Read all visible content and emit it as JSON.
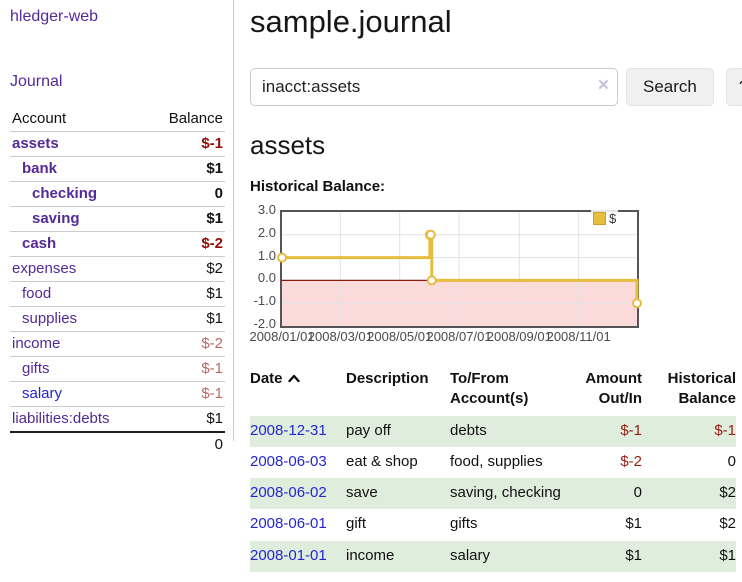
{
  "sidebar": {
    "brand": "hledger-web",
    "journal_link": "Journal",
    "accounts_table": {
      "headers": {
        "account": "Account",
        "balance": "Balance"
      },
      "rows": [
        {
          "account": "assets",
          "depth": 1,
          "balance": "$-1",
          "active": true,
          "negative": true
        },
        {
          "account": "bank",
          "depth": 2,
          "balance": "$1",
          "active": true,
          "negative": false
        },
        {
          "account": "checking",
          "depth": 3,
          "balance": "0",
          "active": true,
          "negative": false
        },
        {
          "account": "saving",
          "depth": 3,
          "balance": "$1",
          "active": true,
          "negative": false
        },
        {
          "account": "cash",
          "depth": 2,
          "balance": "$-2",
          "active": true,
          "negative": true
        },
        {
          "account": "expenses",
          "depth": 1,
          "balance": "$2",
          "active": false,
          "negative": false
        },
        {
          "account": "food",
          "depth": 2,
          "balance": "$1",
          "active": false,
          "negative": false
        },
        {
          "account": "supplies",
          "depth": 2,
          "balance": "$1",
          "active": false,
          "negative": false
        },
        {
          "account": "income",
          "depth": 1,
          "balance": "$-2",
          "active": false,
          "negative": true
        },
        {
          "account": "gifts",
          "depth": 2,
          "balance": "$-1",
          "active": false,
          "negative": true
        },
        {
          "account": "salary",
          "depth": 2,
          "balance": "$-1",
          "active": false,
          "negative": true,
          "unvisited": true
        },
        {
          "account": "liabilities:debts",
          "depth": 1,
          "balance": "$1",
          "active": false,
          "negative": false
        }
      ],
      "total": "0"
    }
  },
  "header": {
    "title": "sample.journal"
  },
  "search": {
    "value": "inacct:assets",
    "clear_icon": "×",
    "button_label": "Search",
    "help_label": "?"
  },
  "account_page": {
    "title": "assets",
    "chart_label": "Historical Balance:"
  },
  "chart_data": {
    "type": "line",
    "style": "step",
    "title": "Historical Balance:",
    "series": [
      {
        "name": "$",
        "color": "#e7bd3f",
        "points": [
          {
            "date": "2008-01-01",
            "value": 1
          },
          {
            "date": "2008-06-01",
            "value": 2
          },
          {
            "date": "2008-06-02",
            "value": 2
          },
          {
            "date": "2008-06-03",
            "value": 0
          },
          {
            "date": "2008-12-31",
            "value": -1
          }
        ]
      }
    ],
    "x_range": [
      "2008-01-01",
      "2008-12-31"
    ],
    "ylim": [
      -2,
      3
    ],
    "y_ticks": [
      {
        "value": 3,
        "label": "3.0"
      },
      {
        "value": 2,
        "label": "2.0"
      },
      {
        "value": 1,
        "label": "1.0"
      },
      {
        "value": 0,
        "label": "0.0"
      },
      {
        "value": -1,
        "label": "-1.0"
      },
      {
        "value": -2,
        "label": "-2.0"
      }
    ],
    "x_ticks": [
      {
        "date": "2008-01-01",
        "label": "2008/01/01"
      },
      {
        "date": "2008-03-01",
        "label": "2008/03/01"
      },
      {
        "date": "2008-05-01",
        "label": "2008/05/01"
      },
      {
        "date": "2008-07-01",
        "label": "2008/07/01"
      },
      {
        "date": "2008-09-01",
        "label": "2008/09/01"
      },
      {
        "date": "2008-11-01",
        "label": "2008/11/01"
      }
    ],
    "legend": {
      "position": "top-right",
      "entries": [
        "$"
      ]
    },
    "grid": true,
    "negative_region_color": "#fbdbda",
    "zero_line_color": "#8c1a12"
  },
  "register_table": {
    "headers": {
      "date": "Date",
      "sort_icon": "sort-ascending",
      "description": "Description",
      "accounts": "To/From Account(s)",
      "amount": "Amount Out/In",
      "balance": "Historical Balance"
    },
    "rows": [
      {
        "date": "2008-12-31",
        "description": "pay off",
        "accounts": "debts",
        "amount": "$-1",
        "balance": "$-1"
      },
      {
        "date": "2008-06-03",
        "description": "eat & shop",
        "accounts": "food, supplies",
        "amount": "$-2",
        "balance": "0"
      },
      {
        "date": "2008-06-02",
        "description": "save",
        "accounts": "saving, checking",
        "amount": "0",
        "balance": "$2"
      },
      {
        "date": "2008-06-01",
        "description": "gift",
        "accounts": "gifts",
        "amount": "$1",
        "balance": "$2"
      },
      {
        "date": "2008-01-01",
        "description": "income",
        "accounts": "salary",
        "amount": "$1",
        "balance": "$1"
      }
    ]
  }
}
